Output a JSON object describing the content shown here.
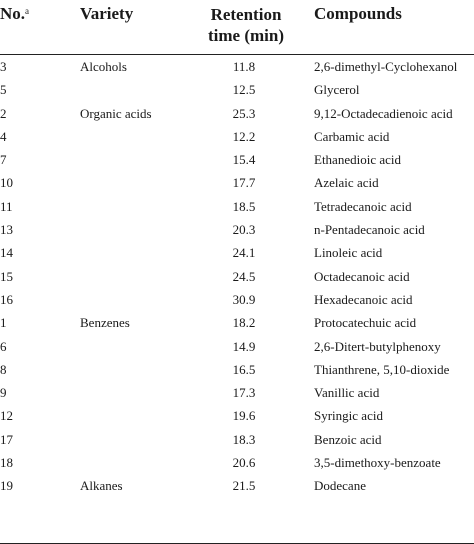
{
  "header": {
    "no": "No.",
    "no_sup": "a",
    "variety": "Variety",
    "retention_line1": "Retention",
    "retention_line2": "time (min)",
    "compounds": "Compounds"
  },
  "rows": [
    {
      "no": "3",
      "variety": "Alcohols",
      "time": "11.8",
      "compound": "2,6-dimethyl-Cyclohexanol"
    },
    {
      "no": "5",
      "variety": "",
      "time": "12.5",
      "compound": "Glycerol"
    },
    {
      "no": "2",
      "variety": "Organic acids",
      "time": "25.3",
      "compound": "9,12-Octadecadienoic acid"
    },
    {
      "no": "4",
      "variety": "",
      "time": "12.2",
      "compound": "Carbamic acid"
    },
    {
      "no": "7",
      "variety": "",
      "time": "15.4",
      "compound": "Ethanedioic acid"
    },
    {
      "no": "10",
      "variety": "",
      "time": "17.7",
      "compound": "Azelaic acid"
    },
    {
      "no": "11",
      "variety": "",
      "time": "18.5",
      "compound": "Tetradecanoic acid"
    },
    {
      "no": "13",
      "variety": "",
      "time": "20.3",
      "compound": "n-Pentadecanoic acid"
    },
    {
      "no": "14",
      "variety": "",
      "time": "24.1",
      "compound": "Linoleic acid"
    },
    {
      "no": "15",
      "variety": "",
      "time": "24.5",
      "compound": "Octadecanoic acid"
    },
    {
      "no": "16",
      "variety": "",
      "time": "30.9",
      "compound": "Hexadecanoic acid"
    },
    {
      "no": "1",
      "variety": "Benzenes",
      "time": "18.2",
      "compound": "Protocatechuic acid"
    },
    {
      "no": "6",
      "variety": "",
      "time": "14.9",
      "compound": "2,6-Ditert-butylphenoxy"
    },
    {
      "no": "8",
      "variety": "",
      "time": "16.5",
      "compound": "Thianthrene, 5,10-dioxide"
    },
    {
      "no": "9",
      "variety": "",
      "time": "17.3",
      "compound": "Vanillic acid"
    },
    {
      "no": "12",
      "variety": "",
      "time": "19.6",
      "compound": "Syringic acid"
    },
    {
      "no": "17",
      "variety": "",
      "time": "18.3",
      "compound": "Benzoic acid"
    },
    {
      "no": "18",
      "variety": "",
      "time": "20.6",
      "compound": "3,5-dimethoxy-benzoate"
    },
    {
      "no": "19",
      "variety": "Alkanes",
      "time": "21.5",
      "compound": "Dodecane"
    }
  ]
}
